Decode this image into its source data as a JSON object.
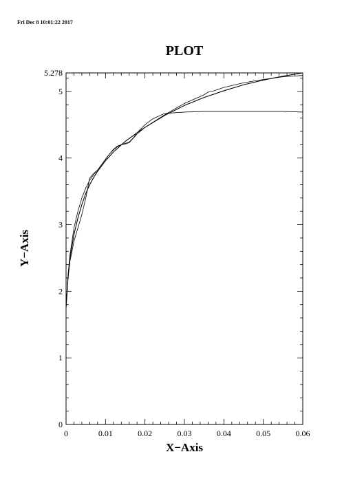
{
  "header": {
    "timestamp": "Fri Dec  8 10:01:22 2017"
  },
  "chart_data": {
    "type": "line",
    "title": "PLOT",
    "xlabel": "X−Axis",
    "ylabel": "Y−Axis",
    "xlim": [
      0,
      0.06
    ],
    "ylim": [
      0,
      5.278
    ],
    "x_ticks": [
      {
        "value": 0,
        "label": "0"
      },
      {
        "value": 0.01,
        "label": "0.01"
      },
      {
        "value": 0.02,
        "label": "0.02"
      },
      {
        "value": 0.03,
        "label": "0.03"
      },
      {
        "value": 0.04,
        "label": "0.04"
      },
      {
        "value": 0.05,
        "label": "0.05"
      },
      {
        "value": 0.06,
        "label": "0.06"
      }
    ],
    "y_ticks": [
      {
        "value": 0,
        "label": "0"
      },
      {
        "value": 1,
        "label": "1"
      },
      {
        "value": 2,
        "label": "2"
      },
      {
        "value": 3,
        "label": "3"
      },
      {
        "value": 4,
        "label": "4"
      },
      {
        "value": 5,
        "label": "5"
      },
      {
        "value": 5.278,
        "label": "5.278"
      }
    ],
    "grid": false,
    "series": [
      {
        "x": [
          0,
          0.0005,
          0.001,
          0.002,
          0.003,
          0.004,
          0.005,
          0.006,
          0.007,
          0.008,
          0.01,
          0.012,
          0.015,
          0.018,
          0.02,
          0.025,
          0.03,
          0.035,
          0.04,
          0.045,
          0.05,
          0.055,
          0.06
        ],
        "y": [
          1.75,
          2.2,
          2.5,
          2.85,
          3.1,
          3.3,
          3.47,
          3.6,
          3.71,
          3.8,
          3.96,
          4.09,
          4.25,
          4.38,
          4.46,
          4.64,
          4.79,
          4.91,
          5.01,
          5.1,
          5.17,
          5.23,
          5.278
        ],
        "color": "#000000"
      },
      {
        "x": [
          0,
          0.0005,
          0.001,
          0.002,
          0.003,
          0.004,
          0.005,
          0.006,
          0.007,
          0.008,
          0.009,
          0.01,
          0.011,
          0.012,
          0.013,
          0.014,
          0.015,
          0.016,
          0.017,
          0.018,
          0.02,
          0.022,
          0.025,
          0.03,
          0.035,
          0.04,
          0.045,
          0.05,
          0.055,
          0.06
        ],
        "y": [
          1.75,
          2.2,
          2.45,
          2.75,
          2.95,
          3.15,
          3.4,
          3.7,
          3.77,
          3.82,
          3.9,
          3.98,
          4.06,
          4.13,
          4.18,
          4.2,
          4.22,
          4.24,
          4.3,
          4.38,
          4.5,
          4.59,
          4.67,
          4.69,
          4.7,
          4.7,
          4.7,
          4.7,
          4.7,
          4.69
        ],
        "color": "#000000"
      },
      {
        "x": [
          0,
          0.0005,
          0.001,
          0.002,
          0.003,
          0.004,
          0.005,
          0.006,
          0.007,
          0.008,
          0.009,
          0.01,
          0.011,
          0.012,
          0.013,
          0.014,
          0.015,
          0.016,
          0.018,
          0.02,
          0.025,
          0.03,
          0.035,
          0.036,
          0.037,
          0.038,
          0.04,
          0.045,
          0.05,
          0.055,
          0.06
        ],
        "y": [
          1.75,
          2.25,
          2.55,
          2.95,
          3.2,
          3.4,
          3.55,
          3.67,
          3.75,
          3.82,
          3.9,
          3.98,
          4.06,
          4.12,
          4.17,
          4.2,
          4.21,
          4.23,
          4.36,
          4.46,
          4.65,
          4.82,
          4.95,
          4.99,
          5.0,
          5.02,
          5.06,
          5.13,
          5.18,
          5.22,
          5.24
        ],
        "color": "#000000"
      }
    ]
  }
}
